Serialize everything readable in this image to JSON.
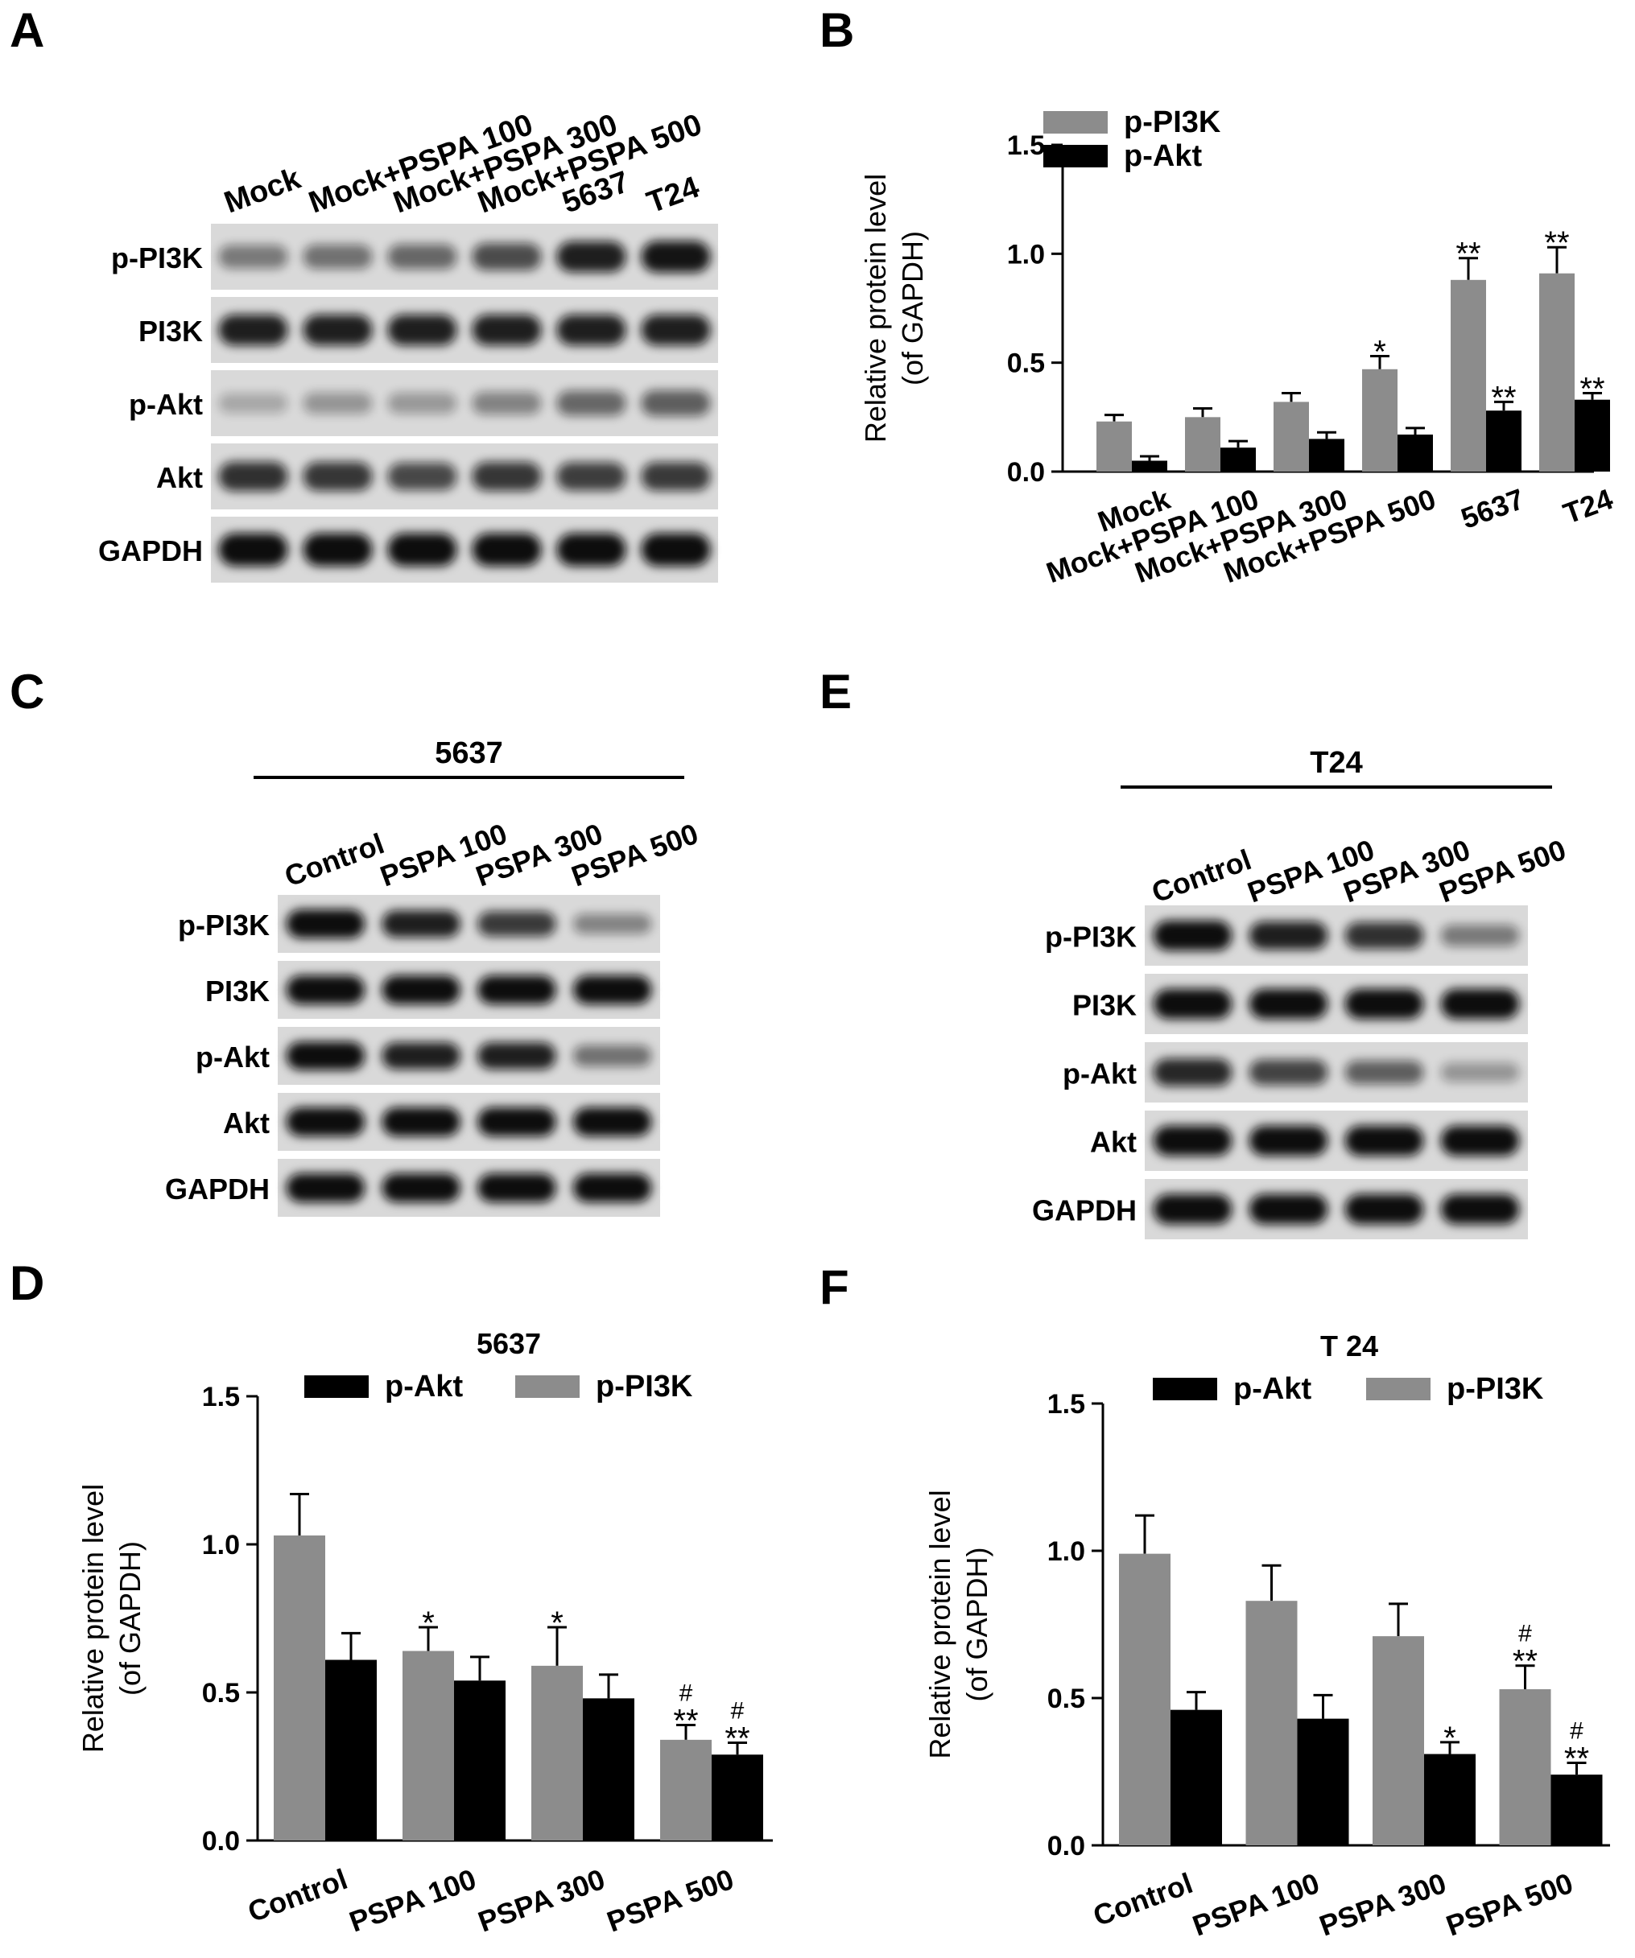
{
  "panel_labels": [
    "A",
    "B",
    "C",
    "D",
    "E",
    "F"
  ],
  "colors": {
    "gray_bar": "#8c8c8c",
    "black_bar": "#000000",
    "blot_bg": "#d9d9d9"
  },
  "blot_A": {
    "lanes": [
      "Mock",
      "Mock+PSPA 100",
      "Mock+PSPA 300",
      "Mock+PSPA 500",
      "5637",
      "T24"
    ],
    "rows": [
      "p-PI3K",
      "PI3K",
      "p-Akt",
      "Akt",
      "GAPDH"
    ],
    "intensity": [
      [
        0.35,
        0.4,
        0.45,
        0.6,
        0.85,
        0.9
      ],
      [
        0.85,
        0.85,
        0.85,
        0.85,
        0.85,
        0.85
      ],
      [
        0.1,
        0.2,
        0.18,
        0.3,
        0.45,
        0.5
      ],
      [
        0.75,
        0.72,
        0.62,
        0.72,
        0.68,
        0.7
      ],
      [
        1.0,
        1.0,
        1.0,
        1.0,
        1.0,
        1.0
      ]
    ]
  },
  "blot_C": {
    "header": "5637",
    "lanes": [
      "Control",
      "PSPA 100",
      "PSPA 300",
      "PSPA 500"
    ],
    "rows": [
      "p-PI3K",
      "PI3K",
      "p-Akt",
      "Akt",
      "GAPDH"
    ],
    "intensity": [
      [
        1.0,
        0.85,
        0.7,
        0.3
      ],
      [
        1.0,
        1.0,
        1.0,
        1.0
      ],
      [
        0.95,
        0.85,
        0.85,
        0.4
      ],
      [
        1.0,
        1.0,
        1.0,
        1.0
      ],
      [
        1.0,
        1.0,
        1.0,
        1.0
      ]
    ]
  },
  "blot_E": {
    "header": "T24",
    "lanes": [
      "Control",
      "PSPA 100",
      "PSPA 300",
      "PSPA 500"
    ],
    "rows": [
      "p-PI3K",
      "PI3K",
      "p-Akt",
      "Akt",
      "GAPDH"
    ],
    "intensity": [
      [
        1.0,
        0.85,
        0.75,
        0.35
      ],
      [
        1.0,
        1.0,
        1.0,
        1.0
      ],
      [
        0.8,
        0.65,
        0.5,
        0.2
      ],
      [
        1.0,
        1.0,
        1.0,
        1.0
      ],
      [
        1.0,
        1.0,
        1.0,
        1.0
      ]
    ]
  },
  "chart_data": [
    {
      "id": "B",
      "type": "bar",
      "title": "",
      "ylabel": "Relative protein level\n(of GAPDH)",
      "ylim": [
        0,
        1.5
      ],
      "yticks": [
        "0.0",
        "0.5",
        "1.0",
        "1.5"
      ],
      "categories": [
        "Mock",
        "Mock+PSPA 100",
        "Mock+PSPA 300",
        "Mock+PSPA 500",
        "5637",
        "T24"
      ],
      "legend_position": "top-left",
      "series": [
        {
          "name": "p-PI3K",
          "color": "gray",
          "values": [
            0.23,
            0.25,
            0.32,
            0.47,
            0.88,
            0.91
          ],
          "errors": [
            0.03,
            0.04,
            0.04,
            0.06,
            0.1,
            0.12
          ],
          "sig": [
            "",
            "",
            "",
            "*",
            "**",
            "**"
          ]
        },
        {
          "name": "p-Akt",
          "color": "black",
          "values": [
            0.05,
            0.11,
            0.15,
            0.17,
            0.28,
            0.33
          ],
          "errors": [
            0.02,
            0.03,
            0.03,
            0.03,
            0.04,
            0.03
          ],
          "sig": [
            "",
            "",
            "",
            "",
            "**",
            "**"
          ]
        }
      ]
    },
    {
      "id": "D",
      "type": "bar",
      "title": "5637",
      "ylabel": "Relative protein  level\n(of GAPDH)",
      "ylim": [
        0,
        1.5
      ],
      "yticks": [
        "0.0",
        "0.5",
        "1.0",
        "1.5"
      ],
      "categories": [
        "Control",
        "PSPA 100",
        "PSPA 300",
        "PSPA 500"
      ],
      "legend_position": "top",
      "legend_order": [
        "p-Akt",
        "p-PI3K"
      ],
      "series": [
        {
          "name": "p-PI3K",
          "color": "gray",
          "values": [
            1.03,
            0.64,
            0.59,
            0.34
          ],
          "errors": [
            0.14,
            0.08,
            0.13,
            0.05
          ],
          "sig": [
            "",
            "*",
            "*",
            "**"
          ],
          "hash": [
            "",
            "",
            "",
            "#"
          ]
        },
        {
          "name": "p-Akt",
          "color": "black",
          "values": [
            0.61,
            0.54,
            0.48,
            0.29
          ],
          "errors": [
            0.09,
            0.08,
            0.08,
            0.04
          ],
          "sig": [
            "",
            "",
            "",
            "**"
          ],
          "hash": [
            "",
            "",
            "",
            "#"
          ]
        }
      ]
    },
    {
      "id": "F",
      "type": "bar",
      "title": "T 24",
      "ylabel": "Relative protein level\n(of GAPDH)",
      "ylim": [
        0,
        1.5
      ],
      "yticks": [
        "0.0",
        "0.5",
        "1.0",
        "1.5"
      ],
      "categories": [
        "Control",
        "PSPA 100",
        "PSPA 300",
        "PSPA 500"
      ],
      "legend_position": "top",
      "legend_order": [
        "p-Akt",
        "p-PI3K"
      ],
      "series": [
        {
          "name": "p-PI3K",
          "color": "gray",
          "values": [
            0.99,
            0.83,
            0.71,
            0.53
          ],
          "errors": [
            0.13,
            0.12,
            0.11,
            0.08
          ],
          "sig": [
            "",
            "",
            "",
            "**"
          ],
          "hash": [
            "",
            "",
            "",
            "#"
          ]
        },
        {
          "name": "p-Akt",
          "color": "black",
          "values": [
            0.46,
            0.43,
            0.31,
            0.24
          ],
          "errors": [
            0.06,
            0.08,
            0.04,
            0.04
          ],
          "sig": [
            "",
            "",
            "*",
            "**"
          ],
          "hash": [
            "",
            "",
            "",
            "#"
          ]
        }
      ]
    }
  ]
}
